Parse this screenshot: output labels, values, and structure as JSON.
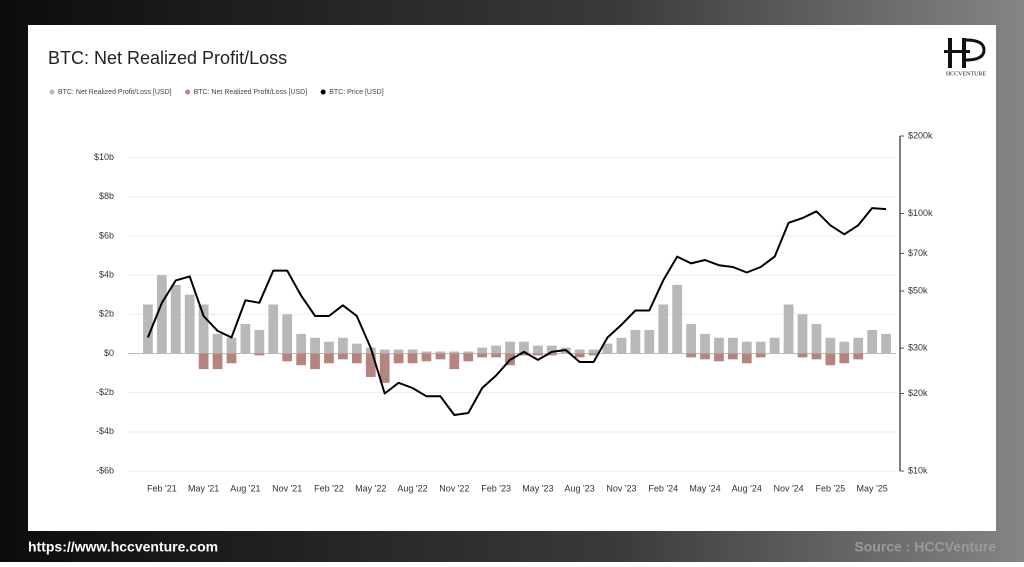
{
  "chart_data": {
    "type": "bar-line",
    "title": "BTC: Net Realized Profit/Loss",
    "x": [
      "2021-01",
      "2021-02",
      "2021-03",
      "2021-04",
      "2021-05",
      "2021-06",
      "2021-07",
      "2021-08",
      "2021-09",
      "2021-10",
      "2021-11",
      "2021-12",
      "2022-01",
      "2022-02",
      "2022-03",
      "2022-04",
      "2022-05",
      "2022-06",
      "2022-07",
      "2022-08",
      "2022-09",
      "2022-10",
      "2022-11",
      "2022-12",
      "2023-01",
      "2023-02",
      "2023-03",
      "2023-04",
      "2023-05",
      "2023-06",
      "2023-07",
      "2023-08",
      "2023-09",
      "2023-10",
      "2023-11",
      "2023-12",
      "2024-01",
      "2024-02",
      "2024-03",
      "2024-04",
      "2024-05",
      "2024-06",
      "2024-07",
      "2024-08",
      "2024-09",
      "2024-10",
      "2024-11",
      "2024-12",
      "2025-01",
      "2025-02",
      "2025-03",
      "2025-04",
      "2025-05",
      "2025-06"
    ],
    "series": [
      {
        "name": "BTC: Net Realized Profit/Loss [USD]",
        "color": "#b8b8b8",
        "kind": "bar",
        "values": [
          2.5,
          4,
          3.5,
          3,
          2.5,
          1,
          0.8,
          1.5,
          1.2,
          2.5,
          2,
          1,
          0.8,
          0.6,
          0.8,
          0.5,
          0.3,
          0.2,
          0.2,
          0.2,
          0.1,
          0.1,
          0.1,
          0.1,
          0.3,
          0.4,
          0.6,
          0.6,
          0.4,
          0.4,
          0.3,
          0.2,
          0.2,
          0.5,
          0.8,
          1.2,
          1.2,
          2.5,
          3.5,
          1.5,
          1,
          0.8,
          0.8,
          0.6,
          0.6,
          0.8,
          2.5,
          2,
          1.5,
          0.8,
          0.6,
          0.8,
          1.2,
          1
        ]
      },
      {
        "name": "BTC: Net Realized Profit/Loss [USD]",
        "color": "#b5847f",
        "kind": "bar",
        "values": [
          0,
          0,
          0,
          0,
          -0.8,
          -0.8,
          -0.5,
          0,
          -0.1,
          0,
          -0.4,
          -0.6,
          -0.8,
          -0.5,
          -0.3,
          -0.5,
          -1.2,
          -1.5,
          -0.5,
          -0.5,
          -0.4,
          -0.3,
          -0.8,
          -0.4,
          -0.2,
          -0.2,
          -0.6,
          -0.1,
          -0.1,
          -0.1,
          0,
          -0.2,
          -0.1,
          0,
          0,
          0,
          0,
          0,
          0,
          -0.2,
          -0.3,
          -0.4,
          -0.3,
          -0.5,
          -0.2,
          0,
          0,
          -0.2,
          -0.3,
          -0.6,
          -0.5,
          -0.3,
          0,
          0
        ]
      },
      {
        "name": "BTC: Price [USD]",
        "color": "#000000",
        "kind": "line",
        "axis": "y2",
        "values": [
          33000,
          45000,
          55000,
          57000,
          40000,
          35000,
          33000,
          46000,
          45000,
          60000,
          60000,
          48000,
          40000,
          40000,
          44000,
          40000,
          30000,
          20000,
          22000,
          21000,
          19500,
          19500,
          16500,
          16800,
          21000,
          23500,
          27000,
          29000,
          27000,
          29000,
          29500,
          26500,
          26500,
          33000,
          37000,
          42000,
          42000,
          55000,
          68000,
          64000,
          66000,
          63000,
          62000,
          59000,
          62000,
          68000,
          92000,
          96000,
          102000,
          90000,
          83000,
          90000,
          105000,
          104000
        ]
      }
    ],
    "xlim": [
      "2020-12",
      "2025-07"
    ],
    "xticks": [
      {
        "value": "2021-02",
        "label": "Feb '21"
      },
      {
        "value": "2021-05",
        "label": "May '21"
      },
      {
        "value": "2021-08",
        "label": "Aug '21"
      },
      {
        "value": "2021-11",
        "label": "Nov '21"
      },
      {
        "value": "2022-02",
        "label": "Feb '22"
      },
      {
        "value": "2022-05",
        "label": "May '22"
      },
      {
        "value": "2022-08",
        "label": "Aug '22"
      },
      {
        "value": "2022-11",
        "label": "Nov '22"
      },
      {
        "value": "2023-02",
        "label": "Feb '23"
      },
      {
        "value": "2023-05",
        "label": "May '23"
      },
      {
        "value": "2023-08",
        "label": "Aug '23"
      },
      {
        "value": "2023-11",
        "label": "Nov '23"
      },
      {
        "value": "2024-02",
        "label": "Feb '24"
      },
      {
        "value": "2024-05",
        "label": "May '24"
      },
      {
        "value": "2024-08",
        "label": "Aug '24"
      },
      {
        "value": "2024-11",
        "label": "Nov '24"
      },
      {
        "value": "2025-02",
        "label": "Feb '25"
      },
      {
        "value": "2025-05",
        "label": "May '25"
      }
    ],
    "ylim": [
      -6,
      11.1
    ],
    "yticks": [
      {
        "value": -6,
        "label": "-$6b"
      },
      {
        "value": -4,
        "label": "-$4b"
      },
      {
        "value": -2,
        "label": "-$2b"
      },
      {
        "value": 0,
        "label": "$0"
      },
      {
        "value": 2,
        "label": "$2b"
      },
      {
        "value": 4,
        "label": "$4b"
      },
      {
        "value": 6,
        "label": "$6b"
      },
      {
        "value": 8,
        "label": "$8b"
      },
      {
        "value": 10,
        "label": "$10b"
      }
    ],
    "y2lim": [
      10000,
      200000
    ],
    "y2scale": "log",
    "y2ticks": [
      {
        "value": 10000,
        "label": "$10k"
      },
      {
        "value": 20000,
        "label": "$20k"
      },
      {
        "value": 30000,
        "label": "$30k"
      },
      {
        "value": 50000,
        "label": "$50k"
      },
      {
        "value": 70000,
        "label": "$70k"
      },
      {
        "value": 100000,
        "label": "$100k"
      },
      {
        "value": 200000,
        "label": "$200k"
      }
    ],
    "grid": true
  },
  "logo_text": "HCCVENTURE",
  "footer": {
    "url": "https://www.hccventure.com",
    "source": "Source : HCCVenture"
  }
}
